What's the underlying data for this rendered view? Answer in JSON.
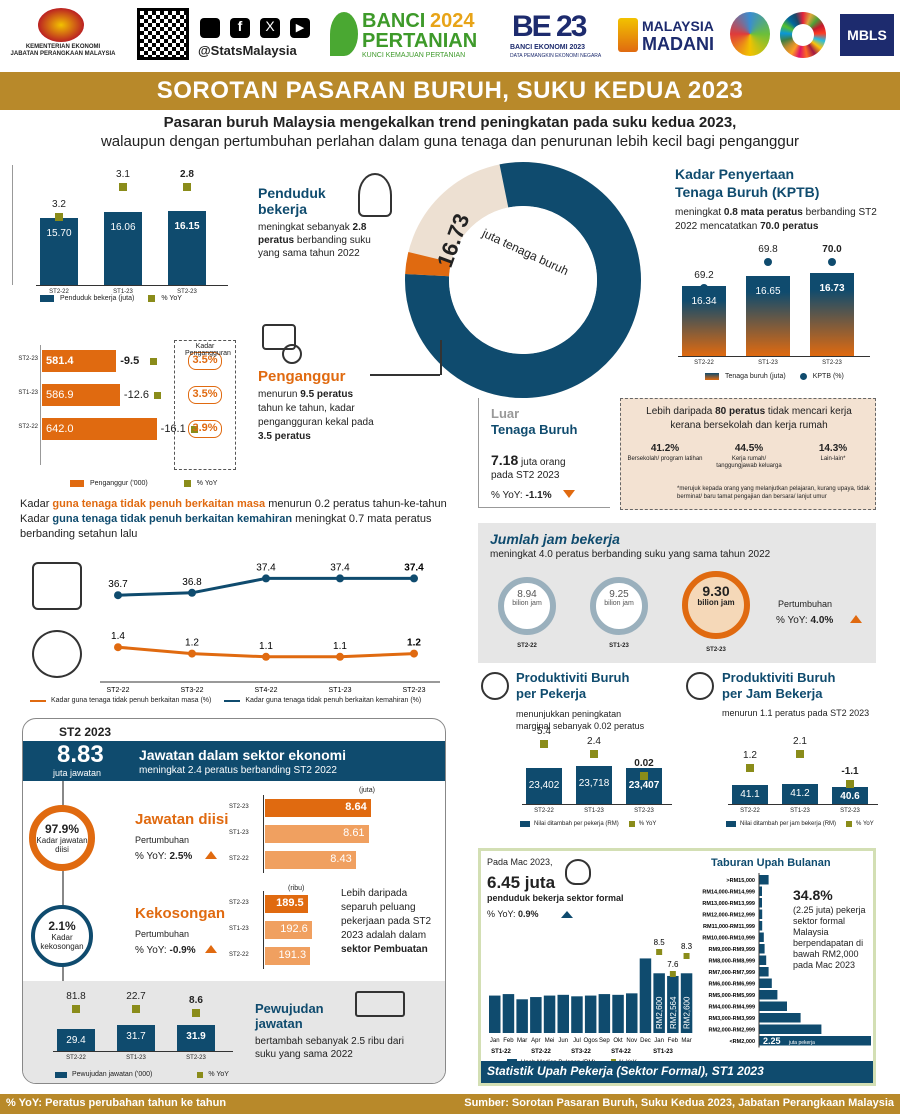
{
  "header": {
    "ministry": "KEMENTERIAN EKONOMI\nJABATAN PERANGKAAN MALAYSIA",
    "social": "@StatsMalaysia",
    "banci_a": "BANCI",
    "banci_year": "2024",
    "banci_b": "PERTANIAN",
    "banci_tag": "KUNCI KEMAJUAN PERTANIAN",
    "be_title": "BANCI EKONOMI 2023",
    "be_tag": "DATA PEMANGKIN EKONOMI NEGARA",
    "madani_a": "MALAYSIA",
    "madani_b": "MADANI",
    "mbls": "MBLS"
  },
  "title": "SOROTAN PASARAN BURUH, SUKU KEDUA 2023",
  "subtitle1": "Pasaran buruh Malaysia mengekalkan trend peningkatan pada suku kedua 2023,",
  "subtitle2": "walaupun dengan pertumbuhan perlahan dalam guna tenaga dan penurunan lebih kecil bagi penganggur",
  "employed": {
    "title": "Penduduk bekerja",
    "desc1": "meningkat sebanyak",
    "desc_val": "2.8 peratus",
    "desc2": "berbanding suku yang sama tahun 2022",
    "legend1": "Penduduk bekerja (juta)",
    "legend2": "% YoY",
    "bars": [
      {
        "cat": "ST2-22",
        "val": "15.70",
        "yoy": "3.2"
      },
      {
        "cat": "ST1-23",
        "val": "16.06",
        "yoy": "3.1"
      },
      {
        "cat": "ST2-23",
        "val": "16.15",
        "yoy": "2.8"
      }
    ]
  },
  "donut": {
    "value": "16.73",
    "label": "juta tenaga buruh",
    "labour_share": 0.79,
    "unemp_share": 0.03
  },
  "kptb": {
    "title1": "Kadar Penyertaan",
    "title2": "Tenaga Buruh (KPTB)",
    "desc1": "meningkat",
    "desc_val": "0.8 mata peratus",
    "desc2": "berbanding",
    "desc3": "ST2 2022 mencatatkan",
    "desc_val2": "70.0 peratus",
    "legend1": "Tenaga buruh (juta)",
    "legend2": "KPTB (%)",
    "bars": [
      {
        "cat": "ST2-22",
        "val": "16.34",
        "rate": "69.2"
      },
      {
        "cat": "ST1-23",
        "val": "16.65",
        "rate": "69.8"
      },
      {
        "cat": "ST2-23",
        "val": "16.73",
        "rate": "70.0"
      }
    ]
  },
  "unemployed": {
    "title": "Penganggur",
    "desc1": "menurun",
    "desc_val": "9.5 peratus",
    "desc2": "tahun ke tahun,",
    "desc3": "kadar pengangguran",
    "desc4": "kekal pada",
    "desc_val2": "3.5 peratus",
    "rate_head": "Kadar Pengangguran",
    "legend1": "Penganggur ('000)",
    "legend2": "% YoY",
    "bars": [
      {
        "cat": "ST2-23",
        "val": "581.4",
        "yoy": "-9.5",
        "rate": "3.5%"
      },
      {
        "cat": "ST1-23",
        "val": "586.9",
        "yoy": "-12.6",
        "rate": "3.5%"
      },
      {
        "cat": "ST2-22",
        "val": "642.0",
        "yoy": "-16.1",
        "rate": "3.9%"
      }
    ]
  },
  "outside": {
    "title1": "Luar",
    "title2": "Tenaga Buruh",
    "val": "7.18",
    "unit": "juta orang",
    "period": "pada ST2 2023",
    "yoy_label": "% YoY:",
    "yoy": "-1.1%",
    "note1": "Lebih daripada",
    "note_val": "80 peratus",
    "note2": "tidak mencari kerja",
    "note3": "kerana bersekolah dan kerja rumah",
    "reasons": [
      {
        "pct": "41.2%",
        "label": "Bersekolah/ program latihan"
      },
      {
        "pct": "44.5%",
        "label": "Kerja rumah/ tanggungjawab keluarga"
      },
      {
        "pct": "14.3%",
        "label": "Lain-lain*"
      }
    ],
    "footnote": "*merujuk kepada orang yang melanjutkan pelajaran, kurang upaya, tidak berminat/ baru tamat pengajian dan bersara/ lanjut umur"
  },
  "underemp": {
    "line1a": "Kadar",
    "line1b": "guna tenaga tidak penuh berkaitan masa",
    "line1c": "menurun 0.2 peratus tahun-ke-tahun",
    "line2a": "Kadar",
    "line2b": "guna tenaga tidak penuh berkaitan kemahiran",
    "line2c": "meningkat 0.7 mata peratus",
    "line3": "berbanding setahun lalu",
    "cats": [
      "ST2-22",
      "ST3-22",
      "ST4-22",
      "ST1-23",
      "ST2-23"
    ],
    "skill": [
      36.7,
      36.8,
      37.4,
      37.4,
      37.4
    ],
    "time": [
      1.4,
      1.2,
      1.1,
      1.1,
      1.2
    ],
    "skill_labels": [
      "36.7",
      "36.8",
      "37.4",
      "37.4",
      "37.4"
    ],
    "time_labels": [
      "1.4",
      "1.2",
      "1.1",
      "1.1",
      "1.2"
    ],
    "legend1": "Kadar guna tenaga tidak penuh berkaitan masa (%)",
    "legend2": "Kadar guna tenaga tidak penuh berkaitan kemahiran (%)"
  },
  "hours": {
    "title": "Jumlah jam bekerja",
    "desc": "meningkat 4.0 peratus berbanding suku yang sama tahun 2022",
    "clocks": [
      {
        "val": "8.94",
        "unit": "bilion jam",
        "cat": "ST2-22"
      },
      {
        "val": "9.25",
        "unit": "bilion jam",
        "cat": "ST1-23"
      },
      {
        "val": "9.30",
        "unit": "bilion jam",
        "cat": "ST2-23"
      }
    ],
    "growth": "Pertumbuhan",
    "yoy_label": "% YoY:",
    "yoy": "4.0%"
  },
  "prod_worker": {
    "title1": "Produktiviti Buruh",
    "title2": "per Pekerja",
    "desc1": "menunjukkan peningkatan",
    "desc2": "marginal sebanyak 0.02 peratus",
    "legend1": "Nilai ditambah per pekerja (RM)",
    "legend2": "% YoY",
    "bars": [
      {
        "cat": "ST2-22",
        "val": "23,402",
        "yoy": "5.4"
      },
      {
        "cat": "ST1-23",
        "val": "23,718",
        "yoy": "2.4"
      },
      {
        "cat": "ST2-23",
        "val": "23,407",
        "yoy": "0.02"
      }
    ]
  },
  "prod_hour": {
    "title1": "Produktiviti Buruh",
    "title2": "per Jam Bekerja",
    "desc": "menurun 1.1 peratus pada ST2 2023",
    "legend1": "Nilai ditambah per jam bekerja (RM)",
    "legend2": "% YoY",
    "bars": [
      {
        "cat": "ST2-22",
        "val": "41.1",
        "yoy": "1.2"
      },
      {
        "cat": "ST1-23",
        "val": "41.2",
        "yoy": "2.1"
      },
      {
        "cat": "ST2-23",
        "val": "40.6",
        "yoy": "-1.1"
      }
    ]
  },
  "jobs": {
    "period": "ST2 2023",
    "total": "8.83",
    "total_unit": "juta jawatan",
    "title": "Jawatan dalam sektor ekonomi",
    "desc": "meningkat 2.4 peratus berbanding ST2 2022",
    "filled_title": "Jawatan diisi",
    "filled_rate": "97.9%",
    "filled_rate_label": "Kadar jawatan diisi",
    "filled_growth": "Pertumbuhan",
    "filled_yoy_label": "% YoY:",
    "filled_yoy": "2.5%",
    "unit_juta": "(juta)",
    "filled_bars": [
      {
        "cat": "ST2-23",
        "val": "8.64"
      },
      {
        "cat": "ST1-23",
        "val": "8.61"
      },
      {
        "cat": "ST2-22",
        "val": "8.43"
      }
    ],
    "vac_title": "Kekosongan",
    "vac_rate": "2.1%",
    "vac_rate_label": "Kadar kekosongan",
    "vac_growth": "Pertumbuhan",
    "vac_yoy_label": "% YoY:",
    "vac_yoy": "-0.9%",
    "unit_ribu": "(ribu)",
    "vac_bars": [
      {
        "cat": "ST2-23",
        "val": "189.5"
      },
      {
        "cat": "ST1-23",
        "val": "192.6"
      },
      {
        "cat": "ST2-22",
        "val": "191.3"
      }
    ],
    "vac_note1": "Lebih daripada separuh peluang pekerjaan pada ST2 2023 adalah dalam",
    "vac_note_b": "sektor Pembuatan",
    "created_title1": "Pewujudan",
    "created_title2": "jawatan",
    "created_desc": "bertambah sebanyak 2.5 ribu dari suku yang sama 2022",
    "legend1": "Pewujudan jawatan ('000)",
    "legend2": "% YoY",
    "created_bars": [
      {
        "cat": "ST2-22",
        "val": "29.4",
        "yoy": "81.8"
      },
      {
        "cat": "ST1-23",
        "val": "31.7",
        "yoy": "22.7"
      },
      {
        "cat": "ST2-23",
        "val": "31.9",
        "yoy": "8.6"
      }
    ]
  },
  "wages": {
    "period": "Pada Mac 2023,",
    "val": "6.45 juta",
    "desc": "penduduk bekerja sektor formal",
    "yoy_label": "% YoY:",
    "yoy": "0.9%",
    "months": [
      "Jan",
      "Feb",
      "Mar",
      "Apr",
      "Mei",
      "Jun",
      "Jul",
      "Ogos",
      "Sep",
      "Okt",
      "Nov",
      "Dec",
      "Jan",
      "Feb",
      "Mar"
    ],
    "med": [
      2300,
      2320,
      2250,
      2280,
      2300,
      2310,
      2290,
      2300,
      2320,
      2310,
      2330,
      2800,
      2600,
      2564,
      2600
    ],
    "labels_bar": [
      "RM2,600",
      "RM2,564",
      "RM2,600"
    ],
    "labels_yoy": [
      "8.5",
      "7.6",
      "8.3"
    ],
    "quarters": [
      "ST1-22",
      "ST2-22",
      "ST3-22",
      "ST4-22",
      "ST1-23"
    ],
    "legend1": "Upah Median Bulanan (RM)",
    "legend2": "% YoY",
    "dist_title": "Taburan Upah Bulanan",
    "dist": [
      {
        "label": ">RM15,000",
        "v": 1.2
      },
      {
        "label": "RM14,000-RM14,999",
        "v": 0.3
      },
      {
        "label": "RM13,000-RM13,999",
        "v": 0.3
      },
      {
        "label": "RM12,000-RM12,999",
        "v": 0.4
      },
      {
        "label": "RM11,000-RM11,999",
        "v": 0.4
      },
      {
        "label": "RM10,000-RM10,999",
        "v": 0.6
      },
      {
        "label": "RM9,000-RM9,999",
        "v": 0.7
      },
      {
        "label": "RM8,000-RM8,999",
        "v": 0.9
      },
      {
        "label": "RM7,000-RM7,999",
        "v": 1.2
      },
      {
        "label": "RM6,000-RM6,999",
        "v": 1.6
      },
      {
        "label": "RM5,000-RM5,999",
        "v": 2.3
      },
      {
        "label": "RM4,000-RM4,999",
        "v": 3.5
      },
      {
        "label": "RM3,000-RM3,999",
        "v": 5.2
      },
      {
        "label": "RM2,000-RM2,999",
        "v": 7.8
      },
      {
        "label": "<RM2,000",
        "v": 14.0
      }
    ],
    "dist_last_val": "2.25",
    "dist_last_unit": "juta pekerja",
    "dist_note_pct": "34.8%",
    "dist_note": "(2.25 juta) pekerja sektor formal Malaysia berpendapatan di bawah RM2,000 pada Mac 2023",
    "footer": "Statistik Upah Pekerja (Sektor Formal), ST1 2023"
  },
  "footer": {
    "left": "% YoY: Peratus perubahan tahun ke tahun",
    "right": "Sumber: Sorotan Pasaran Buruh, Suku Kedua 2023, Jabatan Perangkaan Malaysia"
  },
  "colors": {
    "navy": "#0f4b6e",
    "orange": "#e06a10",
    "gold": "#b8892a",
    "olive": "#8a8c1a"
  }
}
